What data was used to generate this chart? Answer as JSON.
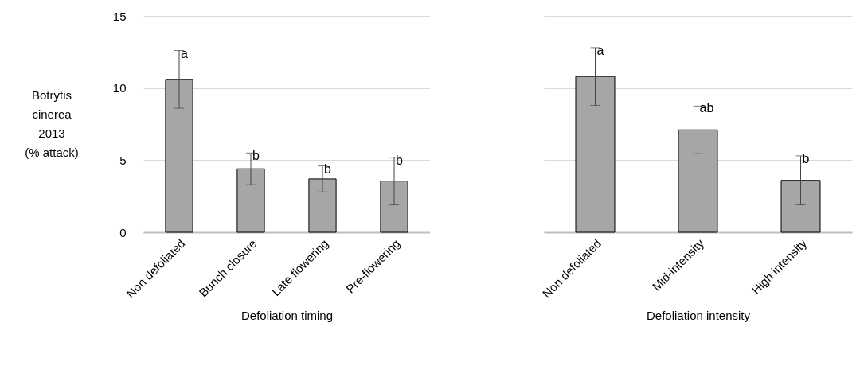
{
  "chart_data": [
    {
      "type": "bar",
      "ylabel": "Botrytis cinerea 2013 (% attack)",
      "xlabel": "Defoliation timing",
      "categories": [
        "Non defoliated",
        "Bunch closure",
        "Late flowering",
        "Pre-flowering"
      ],
      "values": [
        10.6,
        4.4,
        3.7,
        3.55
      ],
      "errors": [
        2.0,
        1.1,
        0.9,
        1.65
      ],
      "color": "#a6a6a6",
      "ylim": [
        0,
        15
      ],
      "yticks": [
        0,
        5,
        10,
        15
      ],
      "grid": "y",
      "annotations": [
        {
          "text": "a",
          "x": "Non defoliated",
          "y": 12.6
        },
        {
          "text": "b",
          "x": "Bunch closure",
          "y": 5.5
        },
        {
          "text": "b",
          "x": "Late flowering",
          "y": 4.6
        },
        {
          "text": "b",
          "x": "Pre-flowering",
          "y": 5.2
        }
      ]
    },
    {
      "type": "bar",
      "xlabel": "Defoliation intensity",
      "categories": [
        "Non defoliated",
        "Mid-intensity",
        "High intensity"
      ],
      "values": [
        10.8,
        7.1,
        3.6
      ],
      "errors": [
        2.0,
        1.65,
        1.7
      ],
      "color": "#a6a6a6",
      "ylim": [
        0,
        15
      ],
      "yticks": [
        0,
        5,
        10,
        15
      ],
      "grid": "y",
      "tick_labels": "x",
      "annotations": [
        {
          "text": "a",
          "x": "Non defoliated",
          "y": 12.8
        },
        {
          "text": "ab",
          "x": "Mid-intensity",
          "y": 8.8
        },
        {
          "text": "b",
          "x": "High intensity",
          "y": 5.3
        }
      ]
    }
  ]
}
